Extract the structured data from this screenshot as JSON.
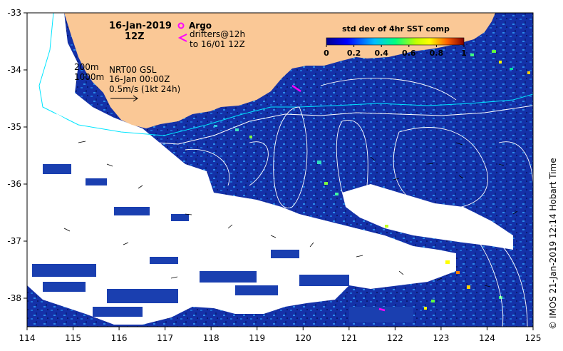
{
  "map": {
    "date_title": "16-Jan-2019",
    "hour_title": "12Z",
    "legend": {
      "argo_label": "Argo",
      "drifters_label": "drifters@12h",
      "drifters_sub": "to 16/01 12Z",
      "argo_color": "#ff00ff",
      "drifter_color": "#ff00ff"
    },
    "contours": {
      "line1": "200m",
      "line2": "1000m"
    },
    "current_info": {
      "line1": "NRT00 GSL",
      "line2": "16-Jan 00:00Z",
      "line3": "0.5m/s (1kt 24h)"
    },
    "colorbar": {
      "title": "std dev of 4hr SST comp",
      "ticks": [
        "0",
        "0.2",
        "0.4",
        "0.6",
        "0.8",
        "1"
      ],
      "range": [
        0,
        1
      ]
    },
    "axes": {
      "x_ticks": [
        "114",
        "115",
        "116",
        "117",
        "118",
        "119",
        "120",
        "121",
        "122",
        "123",
        "124",
        "125"
      ],
      "y_ticks": [
        "-33",
        "-34",
        "-35",
        "-36",
        "-37",
        "-38"
      ],
      "x_range": [
        114,
        125
      ],
      "y_range": [
        -38.5,
        -33
      ]
    },
    "credit": "© IMOS 21-Jan-2019 12:14 Hobart Time",
    "colors": {
      "land": "#fac896",
      "sst_low": "#0a1e96",
      "sst_mid": "#1e78dc",
      "no_data": "#ffffff",
      "contour": "#ffffff",
      "shelf_contour": "#00e5ff"
    }
  }
}
